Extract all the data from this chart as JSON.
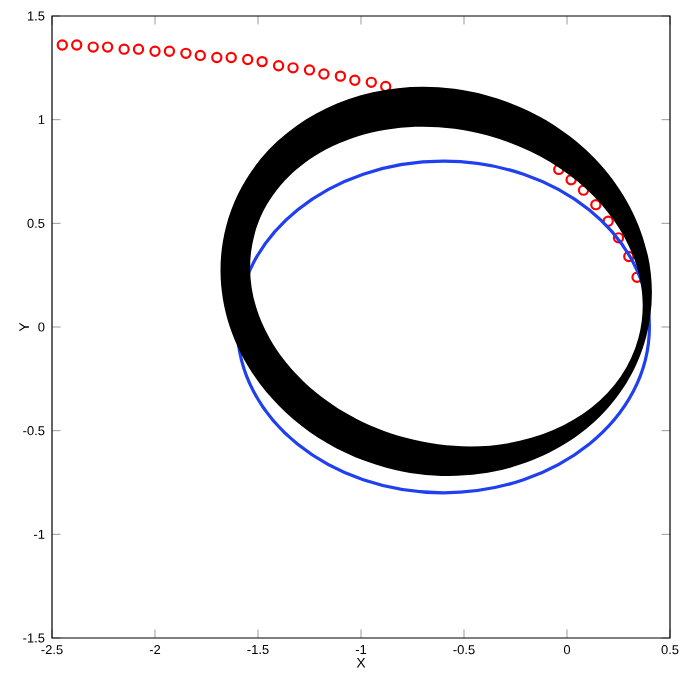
{
  "chart_data": {
    "type": "scatter",
    "xlabel": "X",
    "ylabel": "Y",
    "xlim": [
      -2.5,
      0.5
    ],
    "ylim": [
      -1.5,
      1.5
    ],
    "xticks": [
      -2.5,
      -2,
      -1.5,
      -1,
      -0.5,
      0,
      0.5
    ],
    "yticks": [
      -1.5,
      -1,
      -0.5,
      0,
      0.5,
      1,
      1.5
    ],
    "series": [
      {
        "marker": "circle",
        "color": "#ff0000",
        "x": [
          -2.45,
          -2.38,
          -2.3,
          -2.23,
          -2.15,
          -2.08,
          -2.0,
          -1.93,
          -1.85,
          -1.78,
          -1.7,
          -1.63,
          -1.55,
          -1.48,
          -1.4,
          -1.33,
          -1.25,
          -1.18,
          -1.1,
          -1.03,
          -0.95,
          -0.88,
          -0.04,
          0.02,
          0.08,
          0.14,
          0.2,
          0.25,
          0.3,
          0.34
        ],
        "values": [
          1.36,
          1.36,
          1.35,
          1.35,
          1.34,
          1.34,
          1.33,
          1.33,
          1.32,
          1.31,
          1.3,
          1.3,
          1.29,
          1.28,
          1.26,
          1.25,
          1.24,
          1.22,
          1.21,
          1.19,
          1.18,
          1.16,
          0.76,
          0.71,
          0.66,
          0.59,
          0.51,
          0.43,
          0.34,
          0.24
        ]
      }
    ]
  }
}
